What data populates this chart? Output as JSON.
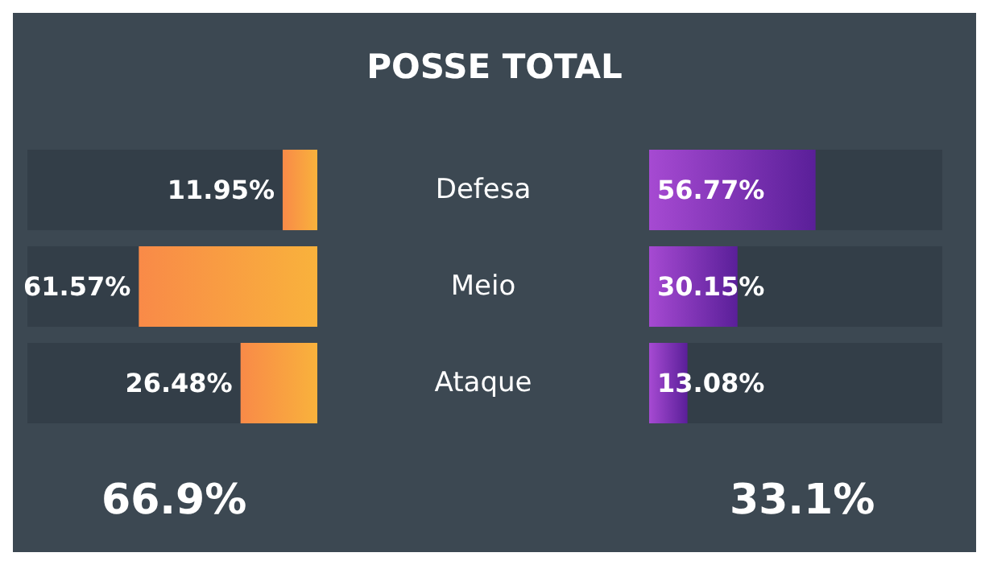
{
  "chart_data": [
    {
      "type": "bar",
      "orientation": "horizontal",
      "title": "POSSE TOTAL",
      "categories": [
        "Defesa",
        "Meio",
        "Ataque"
      ],
      "series": [
        {
          "color": "#f98a48",
          "values": [
            11.95,
            61.57,
            26.48
          ],
          "value_labels": [
            "11.95%",
            "61.57%",
            "26.48%"
          ]
        }
      ],
      "xlim": [
        100,
        0
      ],
      "tick_labels": "y",
      "annotations": [
        "66.9%"
      ]
    },
    {
      "type": "bar",
      "orientation": "horizontal",
      "categories": [
        null,
        null,
        null
      ],
      "series": [
        {
          "color": "#a64ad2",
          "values": [
            56.77,
            30.15,
            13.08
          ],
          "value_labels": [
            "56.77%",
            "30.15%",
            "13.08%"
          ]
        }
      ],
      "xlim": [
        0,
        100
      ],
      "tick_labels": false,
      "annotations": [
        "33.1%"
      ]
    }
  ]
}
